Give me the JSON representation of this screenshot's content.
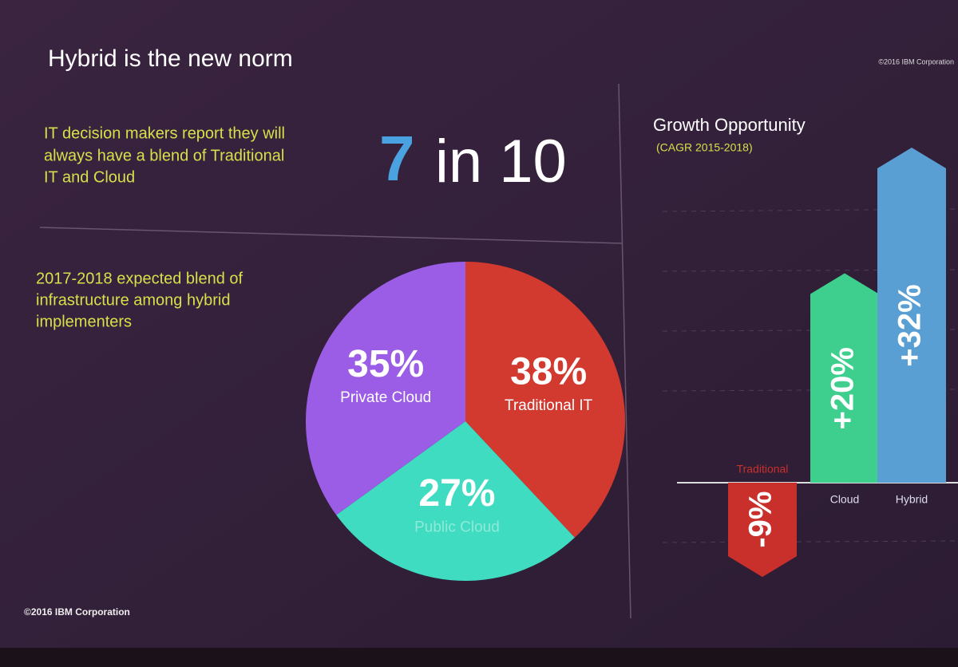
{
  "slide": {
    "title": "Hybrid is the new norm",
    "corner_note": "©2016 IBM Corporation",
    "footer": "©2016 IBM Corporation",
    "stat_lines": [
      "IT decision makers report they will",
      "always have a blend of Traditional",
      "IT and Cloud"
    ],
    "stat_number": "7",
    "stat_rest": "in 10"
  },
  "chart_data": [
    {
      "type": "pie",
      "title_lines": [
        "2017-2018 expected blend of",
        "infrastructure among hybrid",
        "implementers"
      ],
      "categories": [
        "Traditional IT",
        "Public Cloud",
        "Private Cloud"
      ],
      "values": [
        38,
        27,
        35
      ],
      "value_labels": [
        "38%",
        "27%",
        "35%"
      ],
      "colors": [
        "#d2392f",
        "#3fdcc2",
        "#9b5de5"
      ]
    },
    {
      "type": "bar",
      "title": "Growth Opportunity",
      "subtitle": "(CAGR 2015-2018)",
      "categories": [
        "Traditional",
        "Cloud",
        "Hybrid"
      ],
      "values": [
        -9,
        20,
        32
      ],
      "value_labels": [
        "-9%",
        "+20%",
        "+32%"
      ],
      "colors": [
        "#c9302c",
        "#3ecf8e",
        "#5a9fd4"
      ]
    }
  ]
}
